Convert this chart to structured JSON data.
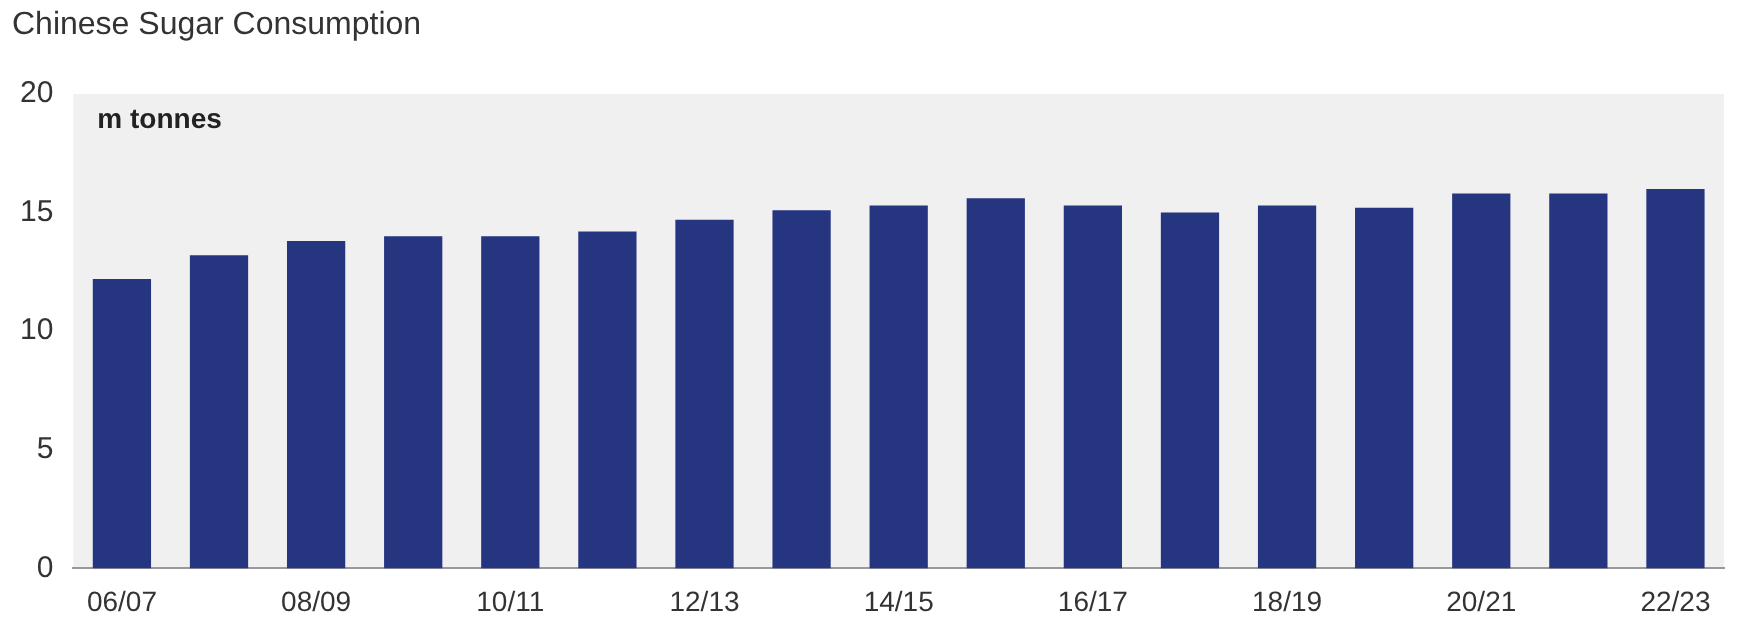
{
  "chart_data": {
    "type": "bar",
    "title": "Chinese Sugar Consumption",
    "ylabel": "m tonnes",
    "categories": [
      "06/07",
      null,
      "08/09",
      null,
      "10/11",
      null,
      "12/13",
      null,
      "14/15",
      null,
      "16/17",
      null,
      "18/19",
      null,
      "20/21",
      null,
      "22/23"
    ],
    "values": [
      12.2,
      13.2,
      13.8,
      14.0,
      14.0,
      14.2,
      14.7,
      15.1,
      15.3,
      15.6,
      15.3,
      15.0,
      15.3,
      15.2,
      15.8,
      15.8,
      16.0
    ],
    "color": "#253580",
    "ylim": [
      0,
      20
    ],
    "yticks": [
      0,
      5,
      10,
      15,
      20
    ],
    "grid": false,
    "legend": false
  }
}
